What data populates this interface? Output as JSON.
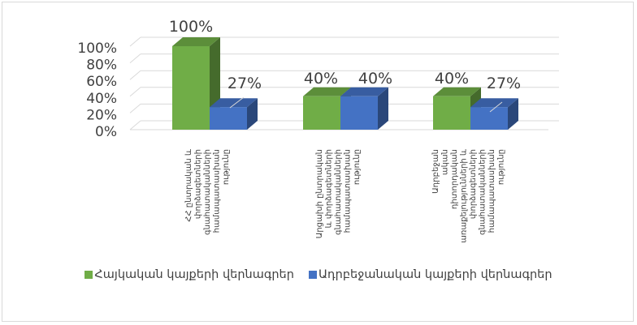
{
  "chart_data": {
    "type": "bar",
    "style": "3d-clustered-column",
    "categories": [
      [
        "ՀՀ ընտրական և",
        "փորձագետների",
        "գնահատականների",
        "համապատասխան",
        "ությունը"
      ],
      [
        "Արցախի ընտրական",
        "և փորձագետների",
        "գնահատականների",
        "համապատասխան",
        "ությունը"
      ],
      [
        "Ադրբեջան",
        "ական",
        "դիտորդական",
        "առաքելությունների և",
        "փորձագետների",
        "գնահատականների",
        "համապատասխան",
        "ությունը"
      ]
    ],
    "series": [
      {
        "name": "Հայկական կայքերի վերնագրեր",
        "values": [
          100,
          40,
          40
        ],
        "labels": [
          "100%",
          "40%",
          "40%"
        ],
        "color": "#70ad47"
      },
      {
        "name": "Ադրբեջանական կայքերի վերնագրեր",
        "values": [
          27,
          40,
          27
        ],
        "labels": [
          "27%",
          "40%",
          "27%"
        ],
        "color": "#4472c4"
      }
    ],
    "yticks": [
      "0%",
      "20%",
      "40%",
      "60%",
      "80%",
      "100%"
    ],
    "ylim": [
      0,
      100
    ],
    "grid": true,
    "legend_position": "bottom"
  }
}
